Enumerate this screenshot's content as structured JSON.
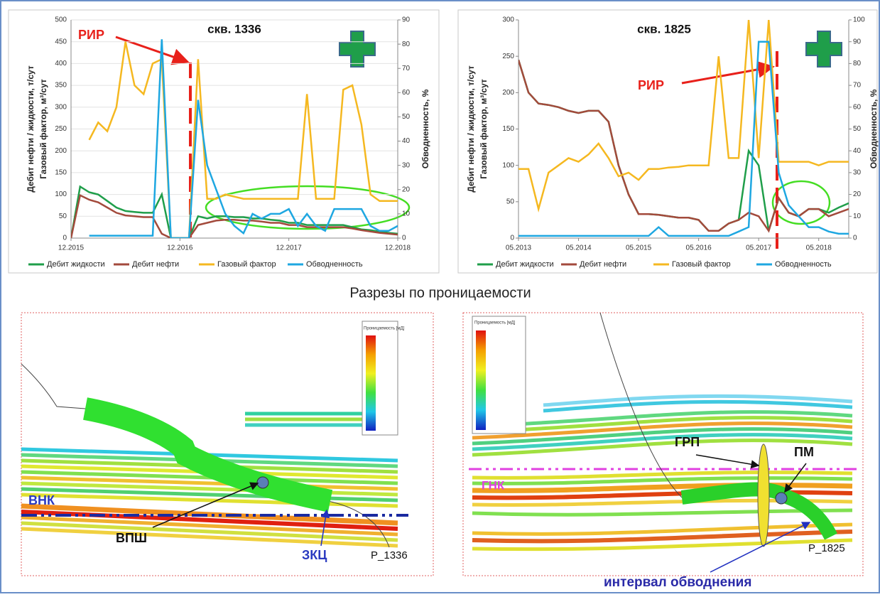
{
  "chart_data": [
    {
      "type": "line",
      "title": "скв. 1336",
      "annotation": "РИР",
      "categories": [
        "12.2015",
        null,
        null,
        null,
        null,
        null,
        null,
        null,
        null,
        null,
        null,
        null,
        "12.2016",
        null,
        null,
        null,
        null,
        null,
        null,
        null,
        null,
        null,
        null,
        null,
        "12.2017",
        null,
        null,
        null,
        null,
        null,
        null,
        null,
        null,
        null,
        null,
        null,
        "12.2018"
      ],
      "y_label": [
        "Дебит нефти / жидкости, т/сут",
        "Газовый фактор, м³/сут"
      ],
      "y2_label": "Обводненность, %",
      "ylim": [
        0,
        500
      ],
      "yticks": [
        0,
        50,
        100,
        150,
        200,
        250,
        300,
        350,
        400,
        450,
        500
      ],
      "y2lim": [
        0,
        90
      ],
      "y2ticks": [
        0,
        10,
        20,
        30,
        40,
        50,
        60,
        70,
        80,
        90
      ],
      "grid": true,
      "series": [
        {
          "name": "Дебит жидкости",
          "color": "#1f9e4a",
          "values": [
            0,
            118,
            105,
            100,
            85,
            70,
            62,
            60,
            58,
            58,
            100,
            0,
            0,
            0,
            50,
            45,
            50,
            50,
            48,
            48,
            45,
            45,
            42,
            40,
            35,
            35,
            30,
            30,
            30,
            30,
            30,
            25,
            20,
            18,
            15,
            12,
            10
          ]
        },
        {
          "name": "Дебит нефти",
          "color": "#a34a3c",
          "values": [
            0,
            98,
            88,
            82,
            70,
            58,
            52,
            50,
            48,
            48,
            10,
            0,
            0,
            0,
            30,
            35,
            40,
            42,
            42,
            40,
            40,
            38,
            35,
            35,
            30,
            30,
            25,
            25,
            25,
            25,
            25,
            22,
            18,
            15,
            12,
            10,
            8
          ]
        },
        {
          "name": "Газовый фактор",
          "color": "#f5b820",
          "values": [
            null,
            null,
            225,
            265,
            245,
            300,
            450,
            350,
            330,
            400,
            410,
            0,
            0,
            0,
            410,
            90,
            90,
            100,
            95,
            90,
            90,
            90,
            90,
            90,
            90,
            90,
            330,
            90,
            90,
            90,
            340,
            350,
            260,
            100,
            85,
            85,
            85
          ]
        },
        {
          "name": "Обводненность",
          "color": "#1ea7e1",
          "axis": "y2",
          "values": [
            null,
            null,
            1,
            1,
            1,
            1,
            1,
            1,
            1,
            1,
            82,
            0,
            0,
            0,
            57,
            30,
            20,
            10,
            5,
            2,
            10,
            8,
            10,
            10,
            12,
            5,
            10,
            5,
            3,
            12,
            12,
            12,
            12,
            5,
            3,
            3,
            5
          ]
        }
      ]
    },
    {
      "type": "line",
      "title": "скв. 1825",
      "annotation": "РИР",
      "categories": [
        "05.2013",
        null,
        null,
        null,
        null,
        null,
        "05.2014",
        null,
        null,
        null,
        null,
        null,
        "05.2015",
        null,
        null,
        null,
        null,
        null,
        "05.2016",
        null,
        null,
        null,
        null,
        null,
        "05.2017",
        null,
        null,
        null,
        null,
        null,
        "05.2018",
        null,
        null,
        null
      ],
      "y_label": [
        "Дебит нефти / жидкости, т/сут",
        "Газовый фактор, м³/сут"
      ],
      "y2_label": "Обводненность, %",
      "ylim": [
        0,
        300
      ],
      "yticks": [
        0,
        50,
        100,
        150,
        200,
        250,
        300
      ],
      "y2lim": [
        0,
        100
      ],
      "y2ticks": [
        0,
        10,
        20,
        30,
        40,
        50,
        60,
        70,
        80,
        90,
        100
      ],
      "grid": false,
      "series": [
        {
          "name": "Дебит жидкости",
          "color": "#1f9e4a",
          "values": [
            245,
            200,
            185,
            183,
            180,
            175,
            172,
            175,
            175,
            160,
            100,
            60,
            33,
            33,
            32,
            30,
            28,
            28,
            25,
            10,
            10,
            20,
            25,
            120,
            100,
            10,
            55,
            35,
            30,
            40,
            40,
            35,
            42,
            48
          ]
        },
        {
          "name": "Дебит нефти",
          "color": "#a34a3c",
          "values": [
            245,
            200,
            185,
            183,
            180,
            175,
            172,
            175,
            175,
            160,
            100,
            60,
            33,
            33,
            32,
            30,
            28,
            28,
            25,
            10,
            10,
            20,
            25,
            35,
            30,
            10,
            55,
            35,
            30,
            40,
            40,
            30,
            35,
            40
          ]
        },
        {
          "name": "Газовый фактор",
          "color": "#f5b820",
          "values": [
            95,
            95,
            40,
            90,
            100,
            110,
            105,
            115,
            130,
            110,
            85,
            90,
            80,
            95,
            95,
            97,
            98,
            100,
            100,
            100,
            250,
            110,
            110,
            300,
            110,
            300,
            105,
            105,
            105,
            105,
            100,
            105,
            105,
            105
          ]
        },
        {
          "name": "Обводненность",
          "color": "#1ea7e1",
          "axis": "y2",
          "values": [
            1,
            1,
            1,
            1,
            1,
            1,
            1,
            1,
            1,
            1,
            1,
            1,
            1,
            1,
            5,
            1,
            1,
            1,
            1,
            1,
            1,
            1,
            3,
            5,
            90,
            90,
            30,
            15,
            10,
            5,
            5,
            3,
            2,
            2
          ]
        }
      ]
    }
  ],
  "section_title": "Разрезы по проницаемости",
  "left_section": {
    "legend_title": "Проницаемость [мД]",
    "vnk": "ВНК",
    "vpsh": "ВПШ",
    "zkc": "ЗКЦ",
    "well": "P_1336"
  },
  "right_section": {
    "legend_title": "Проницаемость [мД]",
    "grp": "ГРП",
    "pm": "ПМ",
    "gnk": "ГНК",
    "well": "P_1825",
    "interval": "интервал обводнения"
  }
}
